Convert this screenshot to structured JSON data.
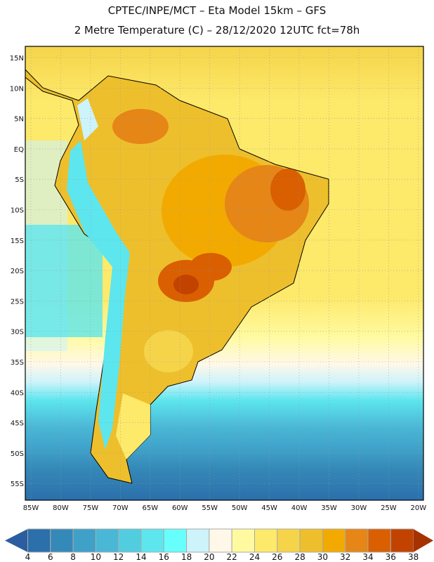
{
  "header": {
    "title_line1": "CPTEC/INPE/MCT –  Eta Model 15km – GFS",
    "title_line2": "2 Metre Temperature (C) – 28/12/2020 12UTC fct=78h"
  },
  "lat_labels": [
    "15N",
    "10N",
    "5N",
    "EQ",
    "5S",
    "10S",
    "15S",
    "20S",
    "25S",
    "30S",
    "35S",
    "40S",
    "45S",
    "50S",
    "55S"
  ],
  "lon_labels": [
    "85W",
    "80W",
    "75W",
    "70W",
    "65W",
    "60W",
    "55W",
    "50W",
    "45W",
    "40W",
    "35W",
    "30W",
    "25W",
    "20W"
  ],
  "colorbar": {
    "labels": [
      "4",
      "6",
      "8",
      "10",
      "12",
      "14",
      "16",
      "18",
      "20",
      "22",
      "24",
      "26",
      "28",
      "30",
      "32",
      "34",
      "36",
      "38"
    ],
    "colors": [
      "#2b6fab",
      "#3589b8",
      "#3fa0c8",
      "#4ab7d6",
      "#52cde0",
      "#5de6ee",
      "#66fffc",
      "#cdf3fb",
      "#fff8e8",
      "#fffaa0",
      "#fde96a",
      "#f5d44a",
      "#eebf2c",
      "#f2aa00",
      "#e58617",
      "#d95f00",
      "#c24300"
    ],
    "under_color": "#2b5ea0",
    "over_color": "#a63200"
  }
}
